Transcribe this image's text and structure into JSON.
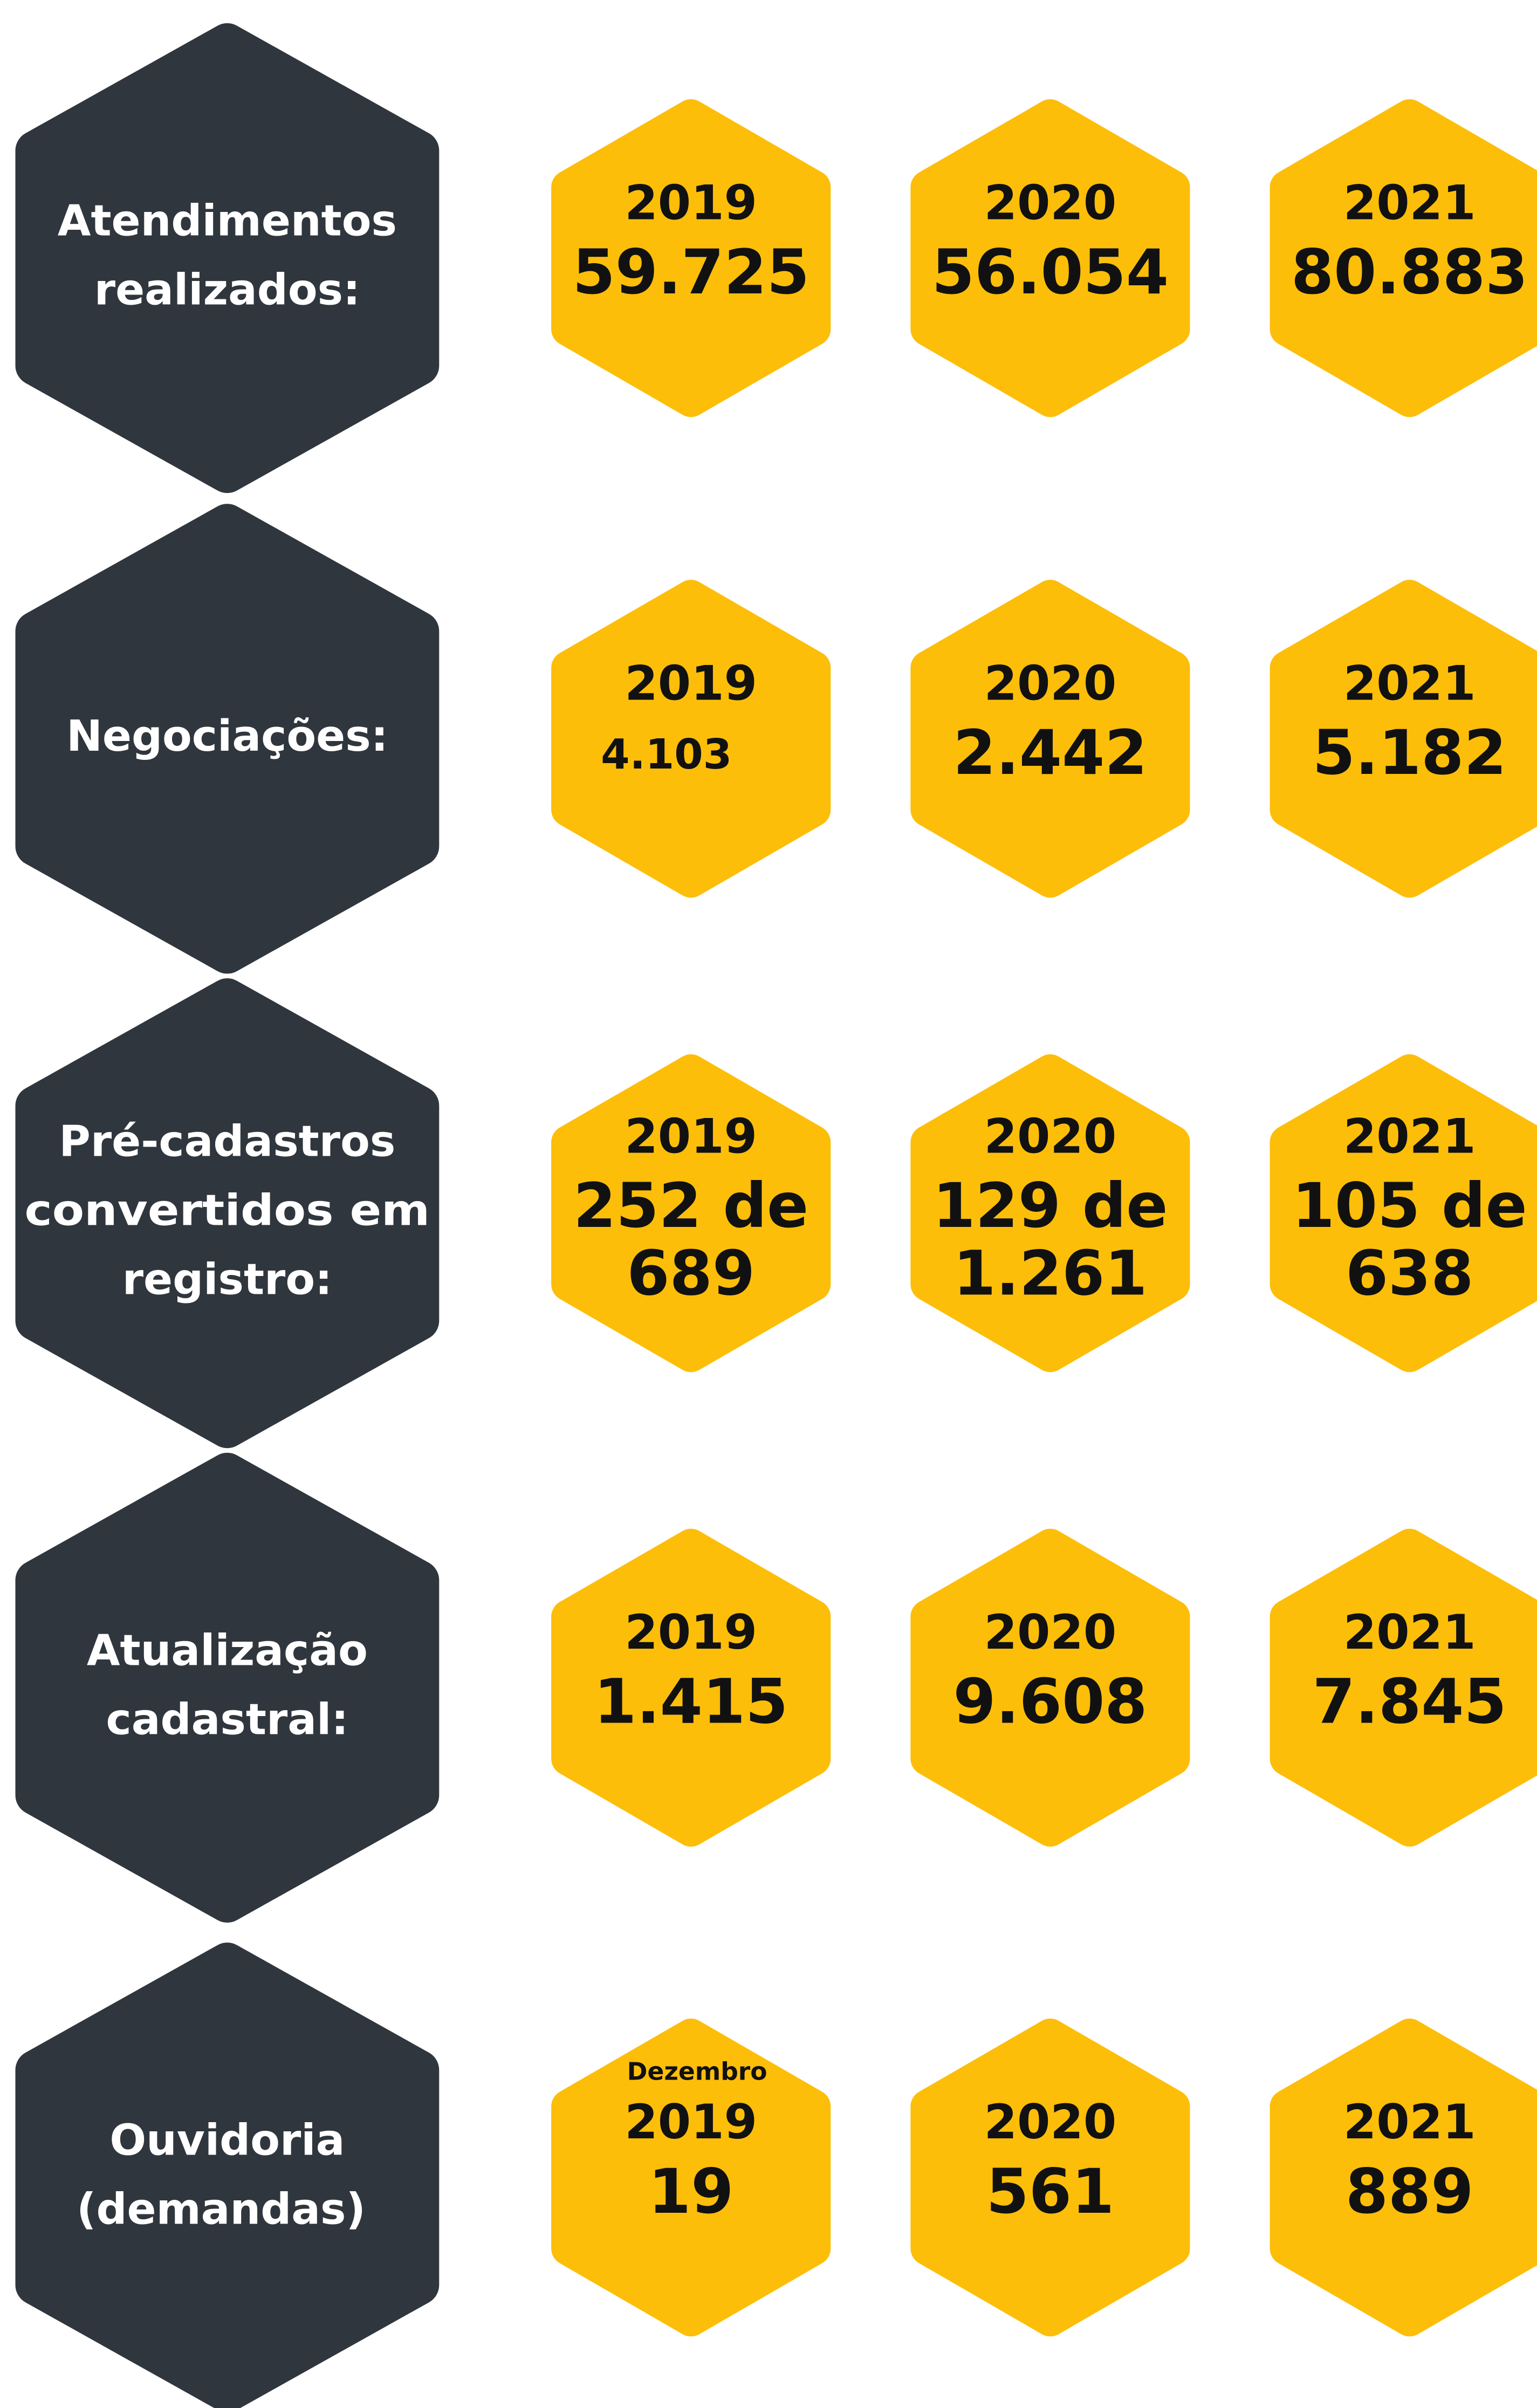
{
  "rows": [
    {
      "label": [
        "Atendimentos",
        "realizados:"
      ],
      "cells": [
        {
          "year": "2019",
          "value": [
            "59.725"
          ]
        },
        {
          "year": "2020",
          "value": [
            "56.054"
          ]
        },
        {
          "year": "2021",
          "value": [
            "80.883"
          ]
        }
      ]
    },
    {
      "label": [
        "Negociações:"
      ],
      "cells": [
        {
          "year": "2019",
          "value": [
            "4.103"
          ]
        },
        {
          "year": "2020",
          "value": [
            "2.442"
          ]
        },
        {
          "year": "2021",
          "value": [
            "5.182"
          ]
        }
      ]
    },
    {
      "label": [
        "Pré-cadastros",
        "convertidos em",
        "registro:"
      ],
      "cells": [
        {
          "year": "2019",
          "value": [
            "252 de",
            "689"
          ]
        },
        {
          "year": "2020",
          "value": [
            "129 de",
            "1.261"
          ]
        },
        {
          "year": "2021",
          "value": [
            "105 de",
            "638"
          ]
        }
      ]
    },
    {
      "label": [
        "Atualização",
        "cadastral:"
      ],
      "cells": [
        {
          "year": "2019",
          "value": [
            "1.415"
          ]
        },
        {
          "year": "2020",
          "value": [
            "9.608"
          ]
        },
        {
          "year": "2021",
          "value": [
            "7.845"
          ]
        }
      ]
    },
    {
      "label": [
        "Ouvidoria"
      ],
      "sublabel": "(demandas)",
      "cells": [
        {
          "note": "Dezembro",
          "year": "2019",
          "value": [
            "19"
          ]
        },
        {
          "year": "2020",
          "value": [
            "561"
          ]
        },
        {
          "year": "2021",
          "value": [
            "889"
          ]
        }
      ]
    }
  ]
}
